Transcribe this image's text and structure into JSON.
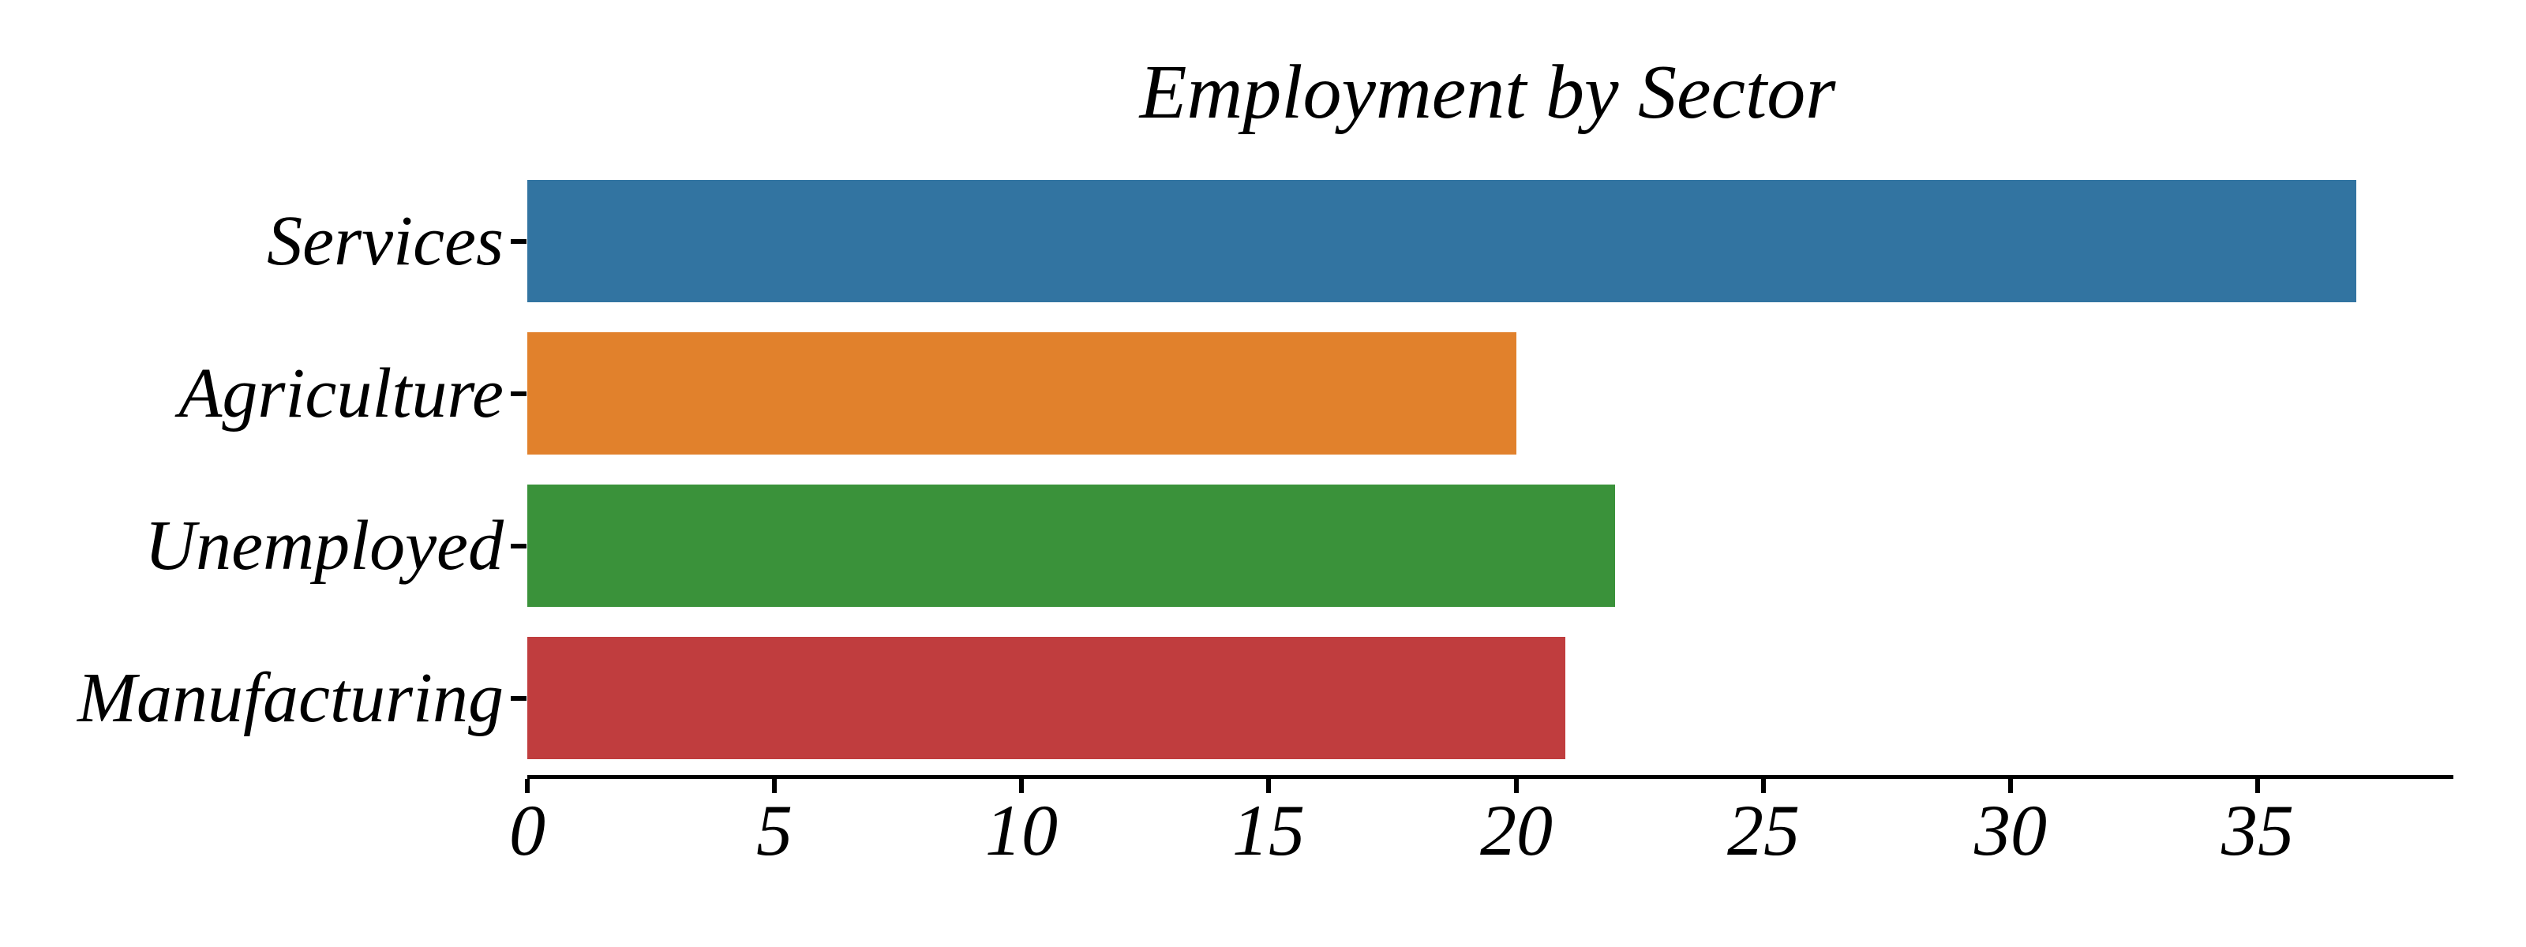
{
  "chart_data": {
    "type": "bar",
    "orientation": "horizontal",
    "title": "Employment by Sector",
    "categories": [
      "Services",
      "Agriculture",
      "Unemployed",
      "Manufacturing"
    ],
    "values": [
      37,
      20,
      22,
      21
    ],
    "bar_colors": [
      "#3274A1",
      "#E1812C",
      "#3A923A",
      "#C03D3E"
    ],
    "x_tick_labels": [
      "0",
      "5",
      "10",
      "15",
      "20",
      "25",
      "30",
      "35"
    ],
    "x_tick_values": [
      0,
      5,
      10,
      15,
      20,
      25,
      30,
      35
    ],
    "xlim": [
      0,
      38.85
    ],
    "xlabel": "",
    "ylabel": "",
    "grid": false,
    "legend": null,
    "colors": {
      "background": "#ffffff",
      "axis": "#000000",
      "text": "#000000"
    }
  }
}
